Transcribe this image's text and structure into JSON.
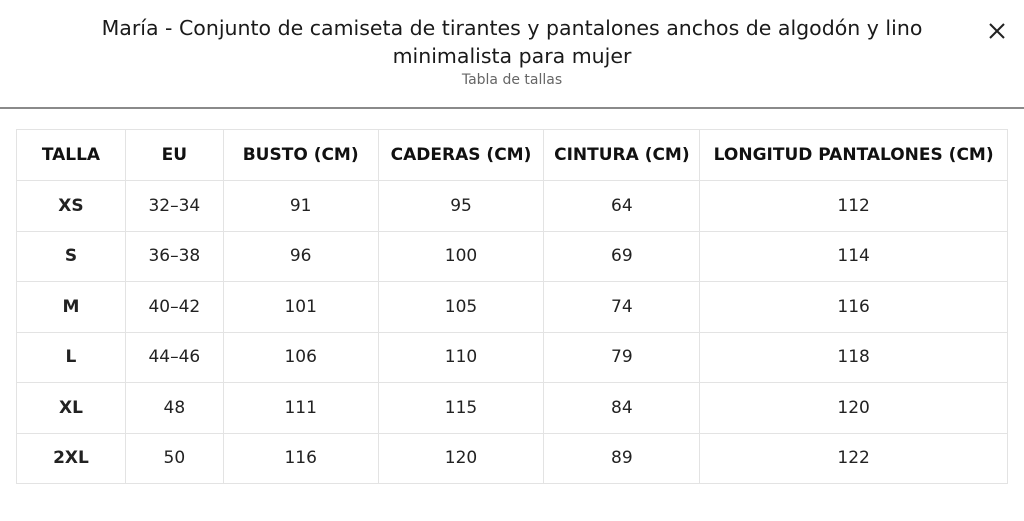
{
  "header": {
    "title": "María - Conjunto de camiseta de tirantes y pantalones anchos de algodón y lino minimalista para mujer",
    "subtitle": "Tabla de tallas"
  },
  "table": {
    "headers": [
      "TALLA",
      "EU",
      "BUSTO (CM)",
      "CADERAS (CM)",
      "CINTURA (CM)",
      "LONGITUD PANTALONES (CM)"
    ],
    "rows": [
      [
        "XS",
        "32–34",
        "91",
        "95",
        "64",
        "112"
      ],
      [
        "S",
        "36–38",
        "96",
        "100",
        "69",
        "114"
      ],
      [
        "M",
        "40–42",
        "101",
        "105",
        "74",
        "116"
      ],
      [
        "L",
        "44–46",
        "106",
        "110",
        "79",
        "118"
      ],
      [
        "XL",
        "48",
        "111",
        "115",
        "84",
        "120"
      ],
      [
        "2XL",
        "50",
        "116",
        "120",
        "89",
        "122"
      ]
    ]
  }
}
